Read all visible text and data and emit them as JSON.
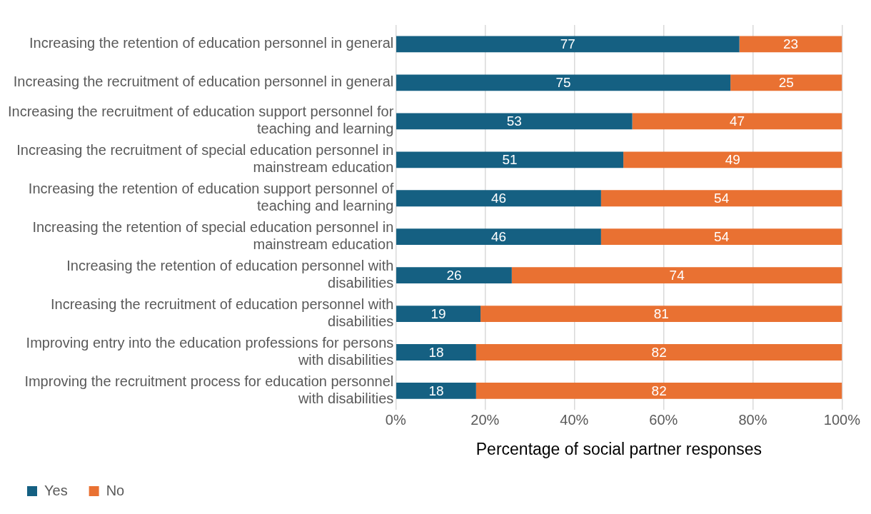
{
  "chart_data": {
    "type": "bar",
    "orientation": "horizontal",
    "stacked": true,
    "categories": [
      "Increasing the retention of education personnel in general",
      "Increasing the recruitment of education personnel in general",
      "Increasing the recruitment of education support personnel for teaching and learning",
      "Increasing the recruitment of special education personnel in mainstream education",
      "Increasing the retention of education support personnel of teaching and learning",
      "Increasing the retention of special education personnel in mainstream education",
      "Increasing the retention of education personnel with disabilities",
      "Increasing the recruitment of education personnel with disabilities",
      "Improving entry into the education professions for persons with disabilities",
      "Improving the recruitment process for education personnel with disabilities"
    ],
    "series": [
      {
        "name": "Yes",
        "color": "#156082",
        "values": [
          77,
          75,
          53,
          51,
          46,
          46,
          26,
          19,
          18,
          18
        ]
      },
      {
        "name": "No",
        "color": "#e97132",
        "values": [
          23,
          25,
          47,
          49,
          54,
          54,
          74,
          81,
          82,
          82
        ]
      }
    ],
    "xlim": [
      0,
      100
    ],
    "xticks": [
      {
        "value": 0,
        "label": "0%"
      },
      {
        "value": 20,
        "label": "20%"
      },
      {
        "value": 40,
        "label": "40%"
      },
      {
        "value": 60,
        "label": "60%"
      },
      {
        "value": 80,
        "label": "80%"
      },
      {
        "value": 100,
        "label": "100%"
      }
    ],
    "xlabel": "Percentage of social partner responses",
    "grid": "x",
    "legend": "bottom left",
    "data_labels": true
  }
}
